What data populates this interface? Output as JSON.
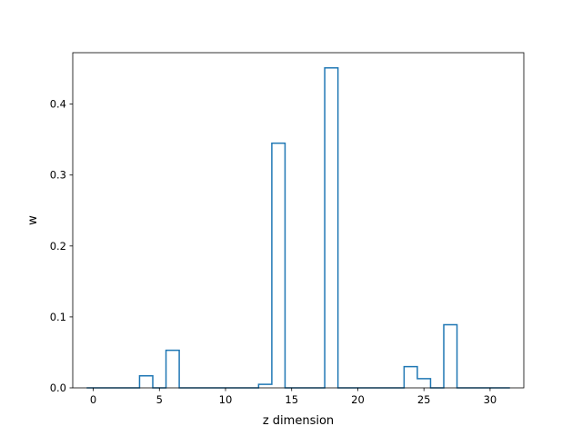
{
  "chart_data": {
    "type": "step",
    "title": "",
    "xlabel": "z dimension",
    "ylabel": "w",
    "xlim": [
      -1.55,
      32.55
    ],
    "ylim": [
      0,
      0.4725
    ],
    "xticks": [
      0,
      5,
      10,
      15,
      20,
      25,
      30
    ],
    "yticks": [
      0.0,
      0.1,
      0.2,
      0.3,
      0.4
    ],
    "ytick_labels": [
      "0.0",
      "0.1",
      "0.2",
      "0.3",
      "0.4"
    ],
    "grid": false,
    "x": [
      0,
      1,
      2,
      3,
      4,
      5,
      6,
      7,
      8,
      9,
      10,
      11,
      12,
      13,
      14,
      15,
      16,
      17,
      18,
      19,
      20,
      21,
      22,
      23,
      24,
      25,
      26,
      27,
      28,
      29,
      30,
      31
    ],
    "values": [
      0,
      0,
      0,
      0,
      0.017,
      0,
      0.053,
      0,
      0,
      0,
      0,
      0,
      0,
      0.005,
      0.345,
      0,
      0,
      0,
      0.451,
      0,
      0,
      0,
      0,
      0,
      0.03,
      0.013,
      0,
      0.089,
      0,
      0,
      0,
      0
    ],
    "color": "#1f77b4"
  }
}
